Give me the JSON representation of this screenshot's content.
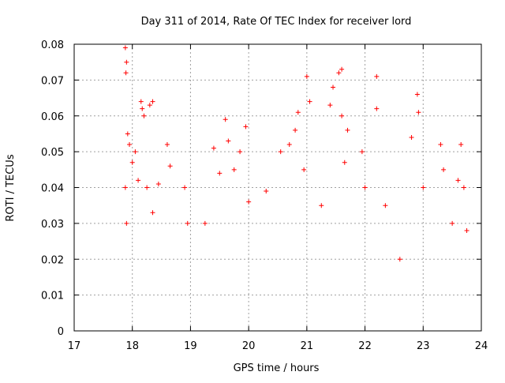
{
  "chart_data": {
    "type": "scatter",
    "title": "Day 311 of 2014, Rate Of TEC Index for receiver lord",
    "xlabel": "GPS time / hours",
    "ylabel": "ROTI / TECUs",
    "xlim": [
      17,
      24
    ],
    "ylim": [
      0,
      0.08
    ],
    "x_ticks": [
      17,
      18,
      19,
      20,
      21,
      22,
      23,
      24
    ],
    "x_tick_labels": [
      "17",
      "18",
      "19",
      "20",
      "21",
      "22",
      "23",
      "24"
    ],
    "y_ticks": [
      0,
      0.01,
      0.02,
      0.03,
      0.04,
      0.05,
      0.06,
      0.07,
      0.08
    ],
    "y_tick_labels": [
      "0",
      "0.01",
      "0.02",
      "0.03",
      "0.04",
      "0.05",
      "0.06",
      "0.07",
      "0.08"
    ],
    "grid": true,
    "marker": "+",
    "color": "#ff0000",
    "series": [
      {
        "name": "ROTI",
        "x_range": [
          17.88,
          23.78
        ],
        "points": [
          [
            17.88,
            0.079
          ],
          [
            17.89,
            0.072
          ],
          [
            17.9,
            0.075
          ],
          [
            17.88,
            0.04
          ],
          [
            17.9,
            0.03
          ],
          [
            17.92,
            0.055
          ],
          [
            17.95,
            0.052
          ],
          [
            18.0,
            0.047
          ],
          [
            18.05,
            0.05
          ],
          [
            18.1,
            0.042
          ],
          [
            18.15,
            0.064
          ],
          [
            18.17,
            0.062
          ],
          [
            18.2,
            0.06
          ],
          [
            18.3,
            0.063
          ],
          [
            18.35,
            0.064
          ],
          [
            18.25,
            0.04
          ],
          [
            18.35,
            0.033
          ],
          [
            18.45,
            0.041
          ],
          [
            18.6,
            0.052
          ],
          [
            18.65,
            0.046
          ],
          [
            18.9,
            0.04
          ],
          [
            18.95,
            0.03
          ],
          [
            19.25,
            0.03
          ],
          [
            19.4,
            0.051
          ],
          [
            19.5,
            0.044
          ],
          [
            19.6,
            0.059
          ],
          [
            19.65,
            0.053
          ],
          [
            19.75,
            0.045
          ],
          [
            19.85,
            0.05
          ],
          [
            19.95,
            0.057
          ],
          [
            20.0,
            0.036
          ],
          [
            20.3,
            0.039
          ],
          [
            20.55,
            0.05
          ],
          [
            20.7,
            0.052
          ],
          [
            20.8,
            0.056
          ],
          [
            20.85,
            0.061
          ],
          [
            20.95,
            0.045
          ],
          [
            21.0,
            0.071
          ],
          [
            21.05,
            0.064
          ],
          [
            21.25,
            0.035
          ],
          [
            21.4,
            0.063
          ],
          [
            21.45,
            0.068
          ],
          [
            21.55,
            0.072
          ],
          [
            21.6,
            0.073
          ],
          [
            21.6,
            0.06
          ],
          [
            21.7,
            0.056
          ],
          [
            21.65,
            0.047
          ],
          [
            21.95,
            0.05
          ],
          [
            22.0,
            0.04
          ],
          [
            22.2,
            0.071
          ],
          [
            22.2,
            0.062
          ],
          [
            22.35,
            0.035
          ],
          [
            22.6,
            0.02
          ],
          [
            22.8,
            0.054
          ],
          [
            22.9,
            0.066
          ],
          [
            22.92,
            0.061
          ],
          [
            23.0,
            0.04
          ],
          [
            23.3,
            0.052
          ],
          [
            23.35,
            0.045
          ],
          [
            23.5,
            0.03
          ],
          [
            23.6,
            0.042
          ],
          [
            23.65,
            0.052
          ],
          [
            23.7,
            0.04
          ],
          [
            23.75,
            0.028
          ]
        ]
      }
    ]
  }
}
